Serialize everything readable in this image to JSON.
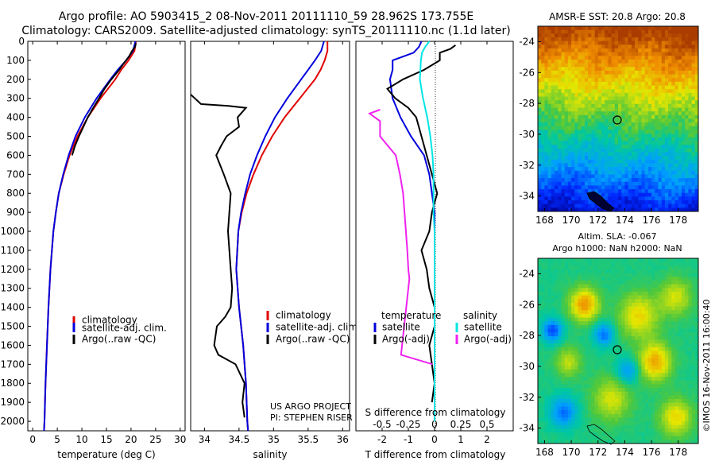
{
  "header": {
    "line1": "Argo profile: AO 5903415_2 08-Nov-2011 20111110_59 28.962S 173.755E",
    "line2": "Climatology: CARS2009. Satellite-adjusted climatology: synTS_20111110.nc (1.1d later)"
  },
  "footer": {
    "project": "US ARGO PROJECT",
    "pi": "PI: STEPHEN RISER",
    "credit": "©IMOS 16-Nov-2011 16:00:40"
  },
  "colors": {
    "climatology": "#e00000",
    "satellite": "#0000dd",
    "argo": "#000000",
    "satellite_salinity": "#00e5e5",
    "argo_salinity_diff": "#ee22ee"
  },
  "chart_data": [
    {
      "type": "line",
      "panel": "temperature",
      "xlabel": "temperature (deg C)",
      "ylim": [
        2050,
        0
      ],
      "xlim": [
        -1,
        31
      ],
      "xticks": [
        "0",
        "5",
        "10",
        "15",
        "20",
        "25",
        "30"
      ],
      "yticks": [
        "0",
        "100",
        "200",
        "300",
        "400",
        "500",
        "600",
        "700",
        "800",
        "900",
        "1000",
        "1100",
        "1200",
        "1300",
        "1400",
        "1500",
        "1600",
        "1700",
        "1800",
        "1900",
        "2000"
      ],
      "legend": [
        "climatology",
        "satellite-adj. clim.",
        "Argo(..raw -QC)"
      ],
      "series": [
        {
          "name": "climatology",
          "depth": [
            0,
            50,
            100,
            150,
            200,
            300,
            400,
            500,
            600,
            700,
            800,
            900,
            1000,
            1200,
            1400,
            1600,
            1800,
            2000,
            2050
          ],
          "values": [
            21.0,
            20.7,
            19.5,
            18.0,
            16.8,
            13.8,
            11.2,
            9.1,
            7.5,
            6.3,
            5.3,
            4.7,
            4.2,
            3.6,
            3.2,
            2.9,
            2.6,
            2.4,
            2.3
          ]
        },
        {
          "name": "satellite-adj. clim.",
          "depth": [
            0,
            50,
            100,
            150,
            200,
            300,
            400,
            500,
            600,
            700,
            800,
            900,
            1000,
            1200,
            1400,
            1600,
            1800,
            2000,
            2050
          ],
          "values": [
            20.9,
            20.4,
            19.0,
            17.3,
            15.8,
            13.0,
            10.6,
            8.7,
            7.3,
            6.2,
            5.3,
            4.7,
            4.2,
            3.6,
            3.2,
            2.9,
            2.6,
            2.4,
            2.3
          ]
        },
        {
          "name": "Argo(..raw -QC)",
          "depth": [
            10,
            30,
            50,
            80,
            120,
            150,
            200,
            250,
            300,
            350,
            400,
            450,
            500,
            550,
            600
          ],
          "values": [
            21.0,
            20.8,
            20.2,
            19.6,
            18.4,
            17.6,
            16.0,
            14.6,
            13.5,
            12.3,
            11.2,
            10.3,
            9.4,
            8.6,
            8.0
          ]
        }
      ]
    },
    {
      "type": "line",
      "panel": "salinity",
      "xlabel": "salinity",
      "ylim": [
        2050,
        0
      ],
      "xlim": [
        33.8,
        36.1
      ],
      "xticks": [
        "34",
        "34.5",
        "35",
        "35.5",
        "36"
      ],
      "legend": [
        "climatology",
        "satellite-adj. clim.",
        "Argo(..raw -QC)"
      ],
      "series": [
        {
          "name": "climatology",
          "depth": [
            0,
            50,
            100,
            150,
            200,
            300,
            400,
            500,
            600,
            700,
            800,
            900,
            1000,
            1200,
            1400,
            1600,
            1800,
            2000,
            2050
          ],
          "values": [
            35.78,
            35.78,
            35.74,
            35.68,
            35.6,
            35.38,
            35.16,
            34.98,
            34.83,
            34.71,
            34.61,
            34.54,
            34.49,
            34.46,
            34.5,
            34.56,
            34.6,
            34.62,
            34.63
          ]
        },
        {
          "name": "satellite-adj. clim.",
          "depth": [
            0,
            50,
            100,
            150,
            200,
            300,
            400,
            500,
            600,
            700,
            800,
            900,
            1000,
            1200,
            1400,
            1600,
            1800,
            2000,
            2050
          ],
          "values": [
            35.73,
            35.69,
            35.6,
            35.5,
            35.4,
            35.2,
            35.02,
            34.88,
            34.76,
            34.66,
            34.59,
            34.53,
            34.49,
            34.46,
            34.5,
            34.56,
            34.6,
            34.62,
            34.63
          ]
        },
        {
          "name": "Argo(..raw -QC)",
          "depth": [
            280,
            300,
            330,
            340,
            350,
            400,
            450,
            500,
            550,
            600,
            700,
            800,
            900,
            1000,
            1100,
            1200,
            1300,
            1400,
            1450,
            1500,
            1550,
            1600,
            1650,
            1700,
            1800,
            1900,
            1980
          ],
          "values": [
            33.8,
            33.86,
            33.95,
            34.35,
            34.6,
            34.48,
            34.5,
            34.32,
            34.24,
            34.17,
            34.28,
            34.38,
            34.36,
            34.34,
            34.36,
            34.38,
            34.4,
            34.38,
            34.3,
            34.18,
            34.16,
            34.14,
            34.2,
            34.45,
            34.58,
            34.55,
            34.58
          ]
        }
      ]
    },
    {
      "type": "line",
      "panel": "difference",
      "xlabel": "T difference from climatology",
      "x2label": "S difference from climatology",
      "ylim": [
        2050,
        0
      ],
      "xlim": [
        -3,
        3
      ],
      "xticks": [
        "-2",
        "-1",
        "0",
        "1",
        "2"
      ],
      "x2ticks": [
        "-0.5",
        "-0.25",
        "0",
        "0.25",
        "0.5"
      ],
      "legend_temperature": [
        "temperature",
        "satellite",
        "Argo(-adj)"
      ],
      "legend_salinity": [
        "salinity",
        "satellite",
        "Argo(-adj)"
      ],
      "series": [
        {
          "name": "satellite",
          "variable": "temperature",
          "depth": [
            0,
            30,
            60,
            100,
            150,
            200,
            300,
            400,
            500,
            600,
            700,
            800,
            900,
            1000,
            1100,
            1200,
            1300,
            1400,
            1600,
            1800,
            2000
          ],
          "values": [
            -0.5,
            -0.6,
            -0.8,
            -1.6,
            -1.6,
            -1.7,
            -1.6,
            -1.3,
            -0.9,
            -0.4,
            -0.2,
            -0.1,
            0,
            0,
            0,
            0,
            0,
            0,
            0,
            0,
            0
          ]
        },
        {
          "name": "Argo(-adj)",
          "variable": "temperature",
          "depth": [
            20,
            40,
            60,
            100,
            150,
            200,
            250,
            300,
            350,
            400,
            500,
            600,
            700,
            800,
            900,
            1000,
            1100,
            1200,
            1300,
            1400,
            1500,
            1600,
            1800,
            1900
          ],
          "values": [
            0.8,
            0.6,
            0.2,
            0.2,
            -0.4,
            -1.2,
            -1.8,
            -1.5,
            -1.0,
            -0.7,
            -0.5,
            -0.3,
            -0.1,
            0.1,
            -0.1,
            -0.2,
            -0.5,
            -0.3,
            -0.2,
            0,
            0,
            -0.2,
            0,
            -0.1
          ]
        },
        {
          "name": "satellite",
          "variable": "salinity",
          "depth": [
            0,
            30,
            60,
            100,
            200,
            300,
            400,
            500,
            600,
            700,
            800,
            900,
            1000,
            1200,
            1400,
            1600,
            1800,
            2000
          ],
          "values": [
            -0.05,
            -0.09,
            -0.12,
            -0.13,
            -0.14,
            -0.11,
            -0.07,
            -0.04,
            -0.02,
            -0.01,
            -0.01,
            -0.01,
            0,
            0,
            0,
            0,
            0,
            0
          ]
        },
        {
          "name": "Argo(-adj)",
          "variable": "salinity",
          "depth": [
            360,
            380,
            420,
            500,
            600,
            700,
            800,
            1100,
            1200,
            1250,
            1650,
            1700
          ],
          "values": [
            -0.52,
            -0.62,
            -0.52,
            -0.52,
            -0.37,
            -0.33,
            -0.3,
            -0.26,
            -0.25,
            -0.24,
            -0.32,
            -0.02
          ]
        }
      ]
    },
    {
      "type": "heatmap",
      "panel": "sst_map",
      "title": "AMSR-E SST: 20.8 Argo: 20.8",
      "xticks": [
        "168",
        "170",
        "172",
        "174",
        "176",
        "178"
      ],
      "yticks": [
        "-24",
        "-26",
        "-28",
        "-30",
        "-32",
        "-34"
      ],
      "xlim": [
        167.5,
        179.5
      ],
      "ylim": [
        -35,
        -23
      ]
    },
    {
      "type": "heatmap",
      "panel": "sla_map",
      "title_line1": "Altim. SLA: -0.067",
      "title_line2": "Argo h1000: NaN h2000: NaN",
      "xticks": [
        "168",
        "170",
        "172",
        "174",
        "176",
        "178"
      ],
      "yticks": [
        "-24",
        "-26",
        "-28",
        "-30",
        "-32",
        "-34"
      ],
      "xlim": [
        167.5,
        179.5
      ],
      "ylim": [
        -35,
        -23
      ]
    }
  ],
  "argo_location": {
    "lon": 173.755,
    "lat": -28.962
  }
}
